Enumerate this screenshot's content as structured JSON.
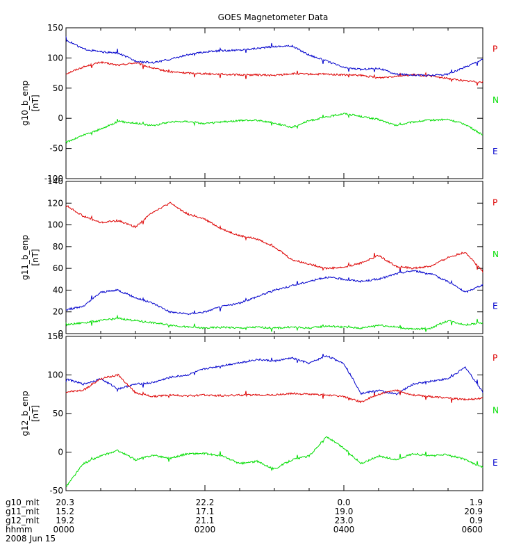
{
  "title": "GOES Magnetometer Data",
  "chart_data": [
    {
      "type": "line",
      "ylabel": "g10_b_enp",
      "yunit": "[nT]",
      "ylim": [
        -100,
        150
      ],
      "yticks": [
        -100,
        -50,
        0,
        50,
        100,
        150
      ],
      "grid": false,
      "legend_placement": "right",
      "legend": [
        {
          "name": "P",
          "color": "#dd0000"
        },
        {
          "name": "N",
          "color": "#00dd00"
        },
        {
          "name": "E",
          "color": "#0000cc"
        }
      ],
      "x": [
        0,
        0.25,
        0.5,
        0.75,
        1,
        1.25,
        1.5,
        1.75,
        2,
        2.25,
        2.5,
        2.75,
        3,
        3.25,
        3.5,
        3.75,
        4,
        4.25,
        4.5,
        4.75,
        5,
        5.25,
        5.5,
        5.75,
        6
      ],
      "series": [
        {
          "name": "P",
          "color": "#dd0000",
          "values": [
            74,
            85,
            93,
            88,
            92,
            83,
            77,
            75,
            74,
            73,
            72,
            72,
            71,
            74,
            73,
            73,
            72,
            71,
            67,
            70,
            72,
            70,
            66,
            62,
            60
          ]
        },
        {
          "name": "N",
          "color": "#00dd00",
          "values": [
            -40,
            -28,
            -18,
            -5,
            -8,
            -12,
            -6,
            -5,
            -9,
            -6,
            -4,
            -3,
            -8,
            -15,
            -4,
            2,
            8,
            3,
            -2,
            -12,
            -6,
            -3,
            -2,
            -10,
            -28
          ]
        },
        {
          "name": "E",
          "color": "#0000cc",
          "values": [
            130,
            115,
            110,
            108,
            95,
            92,
            98,
            105,
            110,
            112,
            113,
            116,
            119,
            120,
            105,
            95,
            84,
            81,
            83,
            73,
            72,
            71,
            73,
            85,
            98
          ]
        }
      ]
    },
    {
      "type": "line",
      "ylabel": "g11_b_enp",
      "yunit": "[nT]",
      "ylim": [
        0,
        140
      ],
      "yticks": [
        0,
        20,
        40,
        60,
        80,
        100,
        120,
        140
      ],
      "grid": false,
      "legend_placement": "right",
      "legend": [
        {
          "name": "P",
          "color": "#dd0000"
        },
        {
          "name": "N",
          "color": "#00dd00"
        },
        {
          "name": "E",
          "color": "#0000cc"
        }
      ],
      "x": [
        0,
        0.25,
        0.5,
        0.75,
        1,
        1.25,
        1.5,
        1.75,
        2,
        2.25,
        2.5,
        2.75,
        3,
        3.25,
        3.5,
        3.75,
        4,
        4.25,
        4.5,
        4.75,
        5,
        5.25,
        5.5,
        5.75,
        6
      ],
      "series": [
        {
          "name": "P",
          "color": "#dd0000",
          "values": [
            118,
            108,
            102,
            104,
            98,
            112,
            120,
            110,
            105,
            96,
            90,
            87,
            80,
            68,
            64,
            60,
            61,
            65,
            72,
            62,
            60,
            62,
            70,
            75,
            57
          ]
        },
        {
          "name": "E",
          "color": "#0000cc",
          "values": [
            22,
            25,
            38,
            40,
            33,
            28,
            20,
            18,
            20,
            25,
            28,
            34,
            40,
            44,
            48,
            52,
            50,
            48,
            50,
            55,
            58,
            55,
            48,
            38,
            45
          ]
        },
        {
          "name": "N",
          "color": "#00dd00",
          "values": [
            8,
            10,
            12,
            14,
            12,
            10,
            8,
            6,
            5,
            6,
            5,
            6,
            5,
            6,
            5,
            7,
            6,
            5,
            8,
            6,
            4,
            5,
            12,
            8,
            10
          ]
        }
      ]
    },
    {
      "type": "line",
      "ylabel": "g12_b_enp",
      "yunit": "[nT]",
      "ylim": [
        -50,
        150
      ],
      "yticks": [
        -50,
        0,
        50,
        100,
        150
      ],
      "grid": false,
      "legend_placement": "right",
      "legend": [
        {
          "name": "P",
          "color": "#dd0000"
        },
        {
          "name": "N",
          "color": "#00dd00"
        },
        {
          "name": "E",
          "color": "#0000cc"
        }
      ],
      "x": [
        0,
        0.25,
        0.5,
        0.75,
        1,
        1.25,
        1.5,
        1.75,
        2,
        2.25,
        2.5,
        2.75,
        3,
        3.25,
        3.5,
        3.75,
        4,
        4.25,
        4.5,
        4.75,
        5,
        5.25,
        5.5,
        5.75,
        6
      ],
      "series": [
        {
          "name": "E",
          "color": "#0000cc",
          "values": [
            95,
            88,
            95,
            82,
            88,
            90,
            97,
            100,
            108,
            112,
            116,
            120,
            118,
            122,
            115,
            125,
            115,
            76,
            80,
            75,
            88,
            92,
            95,
            110,
            78
          ]
        },
        {
          "name": "P",
          "color": "#dd0000",
          "values": [
            78,
            80,
            95,
            100,
            77,
            72,
            74,
            73,
            74,
            73,
            74,
            74,
            74,
            76,
            75,
            74,
            72,
            65,
            75,
            80,
            74,
            72,
            70,
            68,
            70
          ]
        },
        {
          "name": "N",
          "color": "#00dd00",
          "values": [
            -45,
            -15,
            -5,
            2,
            -10,
            -4,
            -8,
            -2,
            -2,
            -5,
            -15,
            -12,
            -22,
            -10,
            -5,
            20,
            5,
            -15,
            -5,
            -10,
            -2,
            -5,
            -3,
            -10,
            -20
          ]
        }
      ]
    }
  ],
  "xaxis": {
    "rows": [
      {
        "label": "g10_mlt",
        "values": [
          "20.3",
          "22.2",
          "0.0",
          "1.9"
        ]
      },
      {
        "label": "g11_mlt",
        "values": [
          "15.2",
          "17.1",
          "19.0",
          "20.9"
        ]
      },
      {
        "label": "g12_mlt",
        "values": [
          "19.2",
          "21.1",
          "23.0",
          "0.9"
        ]
      },
      {
        "label": "hhmm",
        "values": [
          "0000",
          "0200",
          "0400",
          "0600"
        ]
      }
    ],
    "date": "2008 Jun 15"
  }
}
